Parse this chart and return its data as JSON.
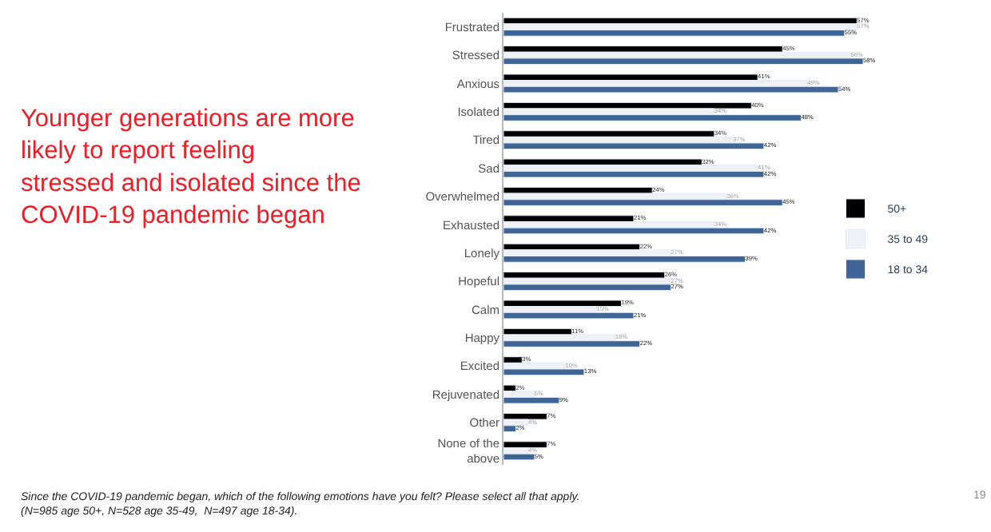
{
  "chart_data": {
    "type": "bar",
    "orientation": "horizontal",
    "legend": "right",
    "categories": [
      "Frustrated",
      "Stressed",
      "Anxious",
      "Isolated",
      "Tired",
      "Sad",
      "Overwhelmed",
      "Exhausted",
      "Lonely",
      "Hopeful",
      "Calm",
      "Happy",
      "Excited",
      "Rejuvenated",
      "Other",
      "None of the above"
    ],
    "series": [
      {
        "name": "50+",
        "color": "#000000",
        "values": [
          57,
          45,
          41,
          40,
          34,
          32,
          24,
          21,
          22,
          26,
          19,
          11,
          3,
          2,
          7,
          7
        ],
        "value_labels": [
          "57%",
          "45%",
          "41%",
          "40%",
          "34%",
          "32%",
          "24%",
          "21%",
          "22%",
          "26%",
          "19%",
          "11%",
          "3%",
          "2%",
          "7%",
          "7%"
        ]
      },
      {
        "name": "35 to 49",
        "color": "#eef1f6",
        "values": [
          57,
          56,
          49,
          34,
          37,
          41,
          36,
          34,
          27,
          27,
          15,
          18,
          10,
          5,
          4,
          4
        ],
        "value_labels": [
          "57%",
          "56%",
          "49%",
          "34%",
          "37%",
          "41%",
          "36%",
          "34%",
          "27%",
          "27%",
          "15%",
          "18%",
          "10%",
          "5%",
          "4%",
          "4%"
        ]
      },
      {
        "name": "18 to 34",
        "color": "#3f6597",
        "values": [
          55,
          58,
          54,
          48,
          42,
          42,
          45,
          42,
          39,
          27,
          21,
          22,
          13,
          9,
          2,
          5
        ],
        "value_labels": [
          "55%",
          "58%",
          "54%",
          "48%",
          "42%",
          "42%",
          "45%",
          "42%",
          "39%",
          "27%",
          "21%",
          "22%",
          "13%",
          "9%",
          "2%",
          "5%"
        ]
      }
    ],
    "annotations": [
      "Younger generations are more likely to report feeling stressed and isolated since the COVID-19 pandemic began",
      "Since the COVID-19 pandemic began, which of the following emotions have you felt? Please select all that apply.\n(N=985 age 50+, N=528 age 35-49,  N=497 age 18-34).",
      "19"
    ]
  }
}
